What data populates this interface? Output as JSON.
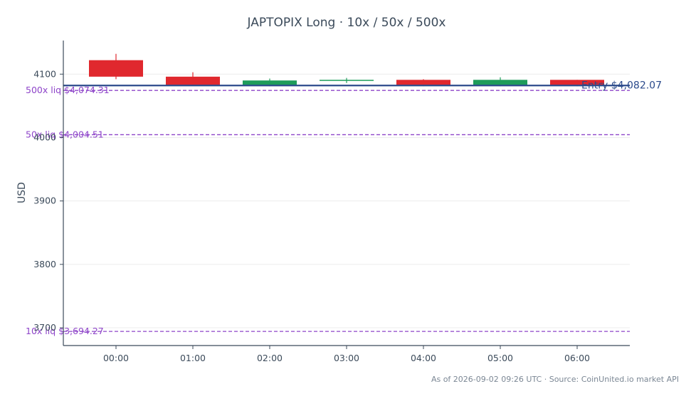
{
  "chart_data": {
    "type": "candlestick",
    "title": "JAPTOPIX Long · 10x / 50x / 500x",
    "ylabel": "USD",
    "xlabel": "",
    "ylim": [
      3672,
      4153
    ],
    "yticks": [
      3700,
      3800,
      3900,
      4000,
      4100
    ],
    "grid": true,
    "categories": [
      "00:00",
      "01:00",
      "02:00",
      "03:00",
      "04:00",
      "05:00",
      "06:00"
    ],
    "candles": [
      {
        "time": "00:00",
        "open": 4122,
        "high": 4132,
        "low": 4092,
        "close": 4096
      },
      {
        "time": "01:00",
        "open": 4096,
        "high": 4103,
        "low": 4082,
        "close": 4083
      },
      {
        "time": "02:00",
        "open": 4083,
        "high": 4093,
        "low": 4081,
        "close": 4090
      },
      {
        "time": "03:00",
        "open": 4090,
        "high": 4094,
        "low": 4086,
        "close": 4091
      },
      {
        "time": "04:00",
        "open": 4091,
        "high": 4092,
        "low": 4081,
        "close": 4083
      },
      {
        "time": "05:00",
        "open": 4083,
        "high": 4095,
        "low": 4081,
        "close": 4091
      },
      {
        "time": "06:00",
        "open": 4091,
        "high": 4091,
        "low": 4081,
        "close": 4083
      }
    ],
    "entry": {
      "value": 4082.07,
      "label": "Entry $4,082.07",
      "color": "#2b4a8b"
    },
    "liquidations": [
      {
        "value": 4074.31,
        "label": "500x liq $4,074.31"
      },
      {
        "value": 4004.51,
        "label": "50x liq $4,004.51"
      },
      {
        "value": 3694.27,
        "label": "10x liq $3,694.27"
      }
    ],
    "colors": {
      "up": "#1e9c5a",
      "down": "#e0282e",
      "liq": "#8e44c9",
      "axis": "#3b4a5a",
      "grid": "#ececec"
    }
  },
  "footer": "As of 2026-09-02 09:26 UTC · Source: CoinUnited.io market API"
}
